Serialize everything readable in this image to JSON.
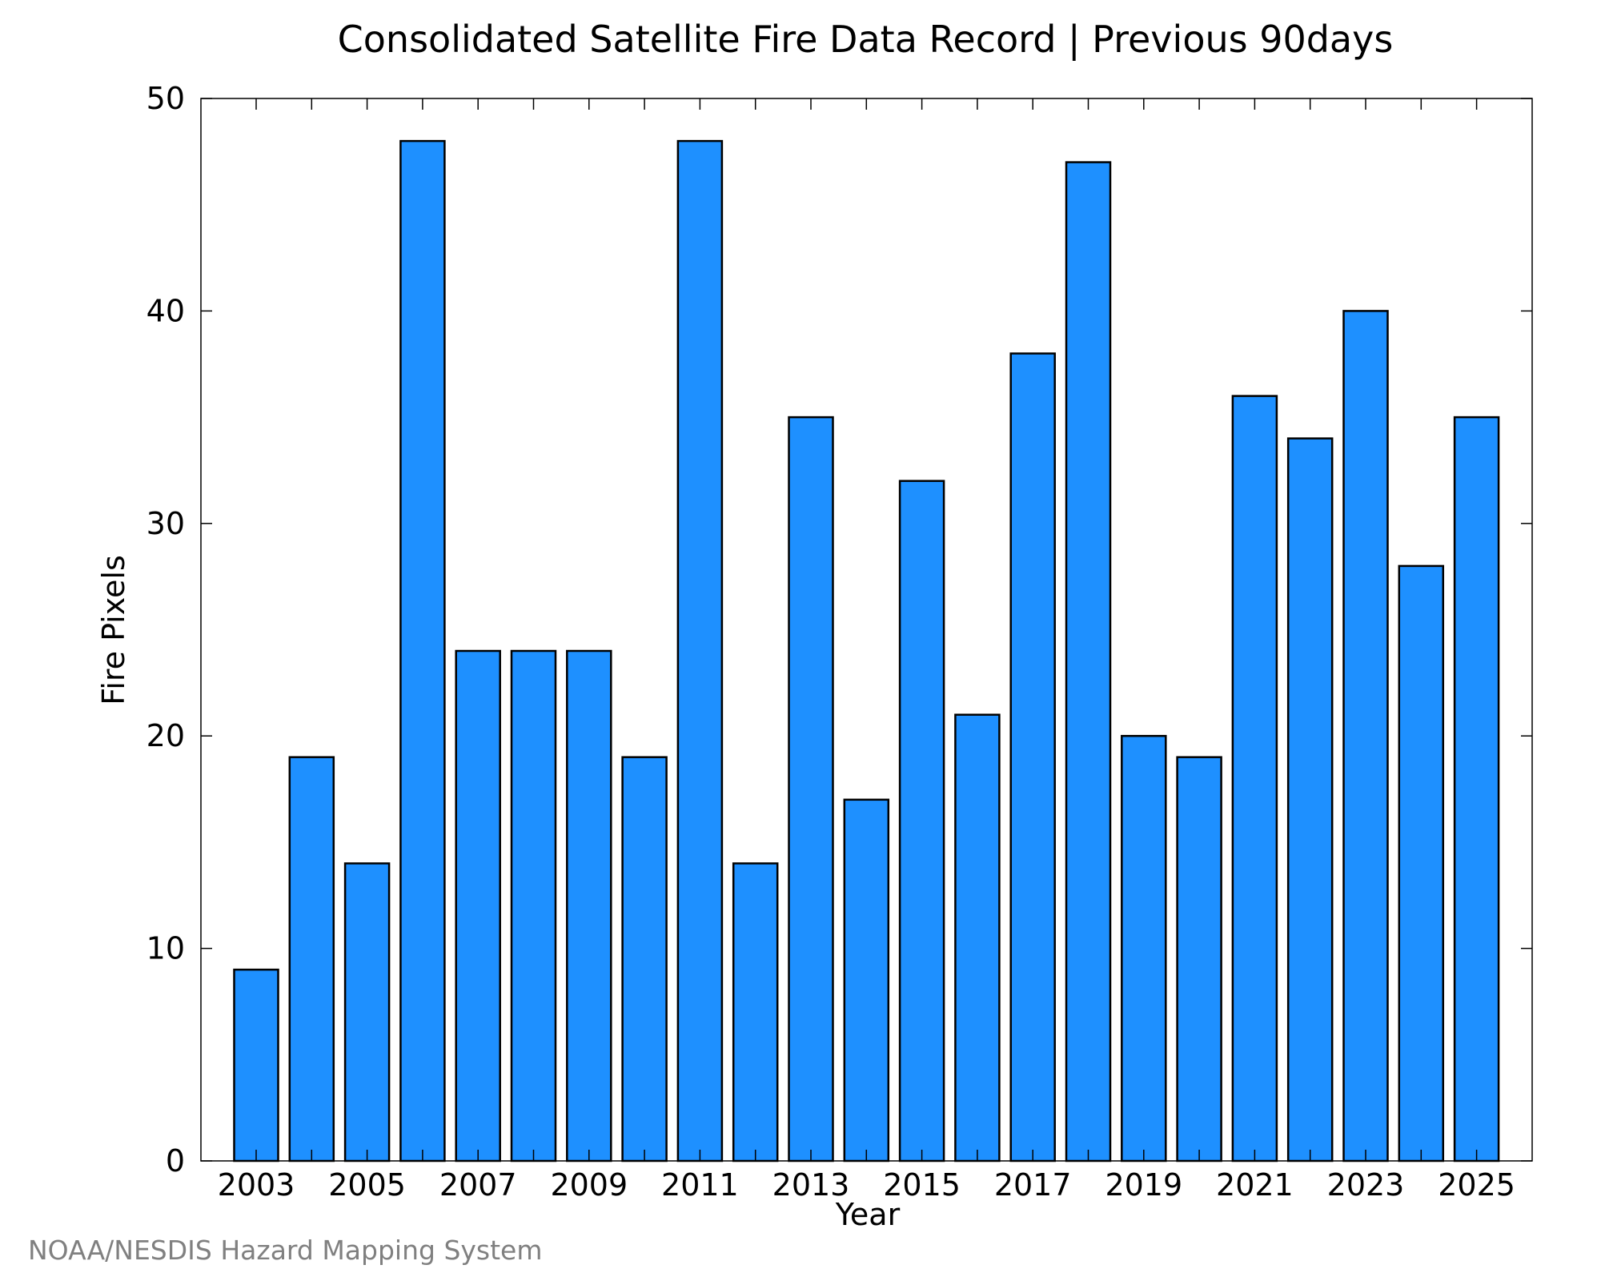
{
  "chart_data": {
    "type": "bar",
    "title": "Consolidated Satellite Fire Data Record | Previous 90days",
    "xlabel": "Year",
    "ylabel": "Fire Pixels",
    "categories": [
      "2003",
      "2004",
      "2005",
      "2006",
      "2007",
      "2008",
      "2009",
      "2010",
      "2011",
      "2012",
      "2013",
      "2014",
      "2015",
      "2016",
      "2017",
      "2018",
      "2019",
      "2020",
      "2021",
      "2022",
      "2023",
      "2024",
      "2025"
    ],
    "values": [
      9,
      19,
      14,
      48,
      24,
      24,
      24,
      19,
      48,
      14,
      35,
      17,
      32,
      21,
      38,
      47,
      20,
      19,
      36,
      34,
      40,
      28,
      35
    ],
    "x_tick_labels": [
      "2003",
      "2005",
      "2007",
      "2009",
      "2011",
      "2013",
      "2015",
      "2017",
      "2019",
      "2021",
      "2023",
      "2025"
    ],
    "y_tick_labels": [
      "0",
      "10",
      "20",
      "30",
      "40",
      "50"
    ],
    "ylim": [
      0,
      50
    ],
    "grid": false,
    "bar_color": "#1E90FF",
    "bar_edge_color": "#000000"
  },
  "footer": {
    "credit": "NOAA/NESDIS Hazard Mapping System"
  }
}
